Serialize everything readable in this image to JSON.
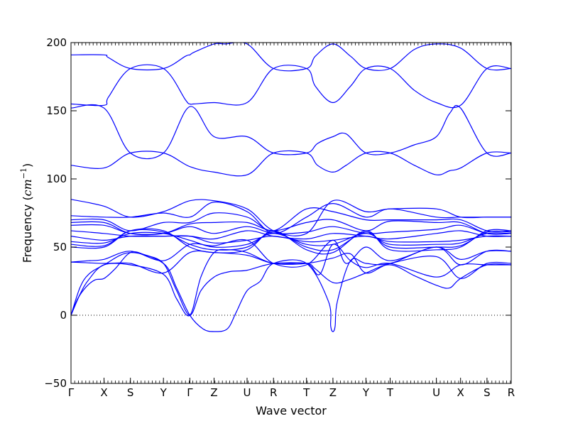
{
  "chart_data": {
    "type": "line",
    "title": "",
    "xlabel": "Wave vector",
    "ylabel": "Frequency (cm⁻¹)",
    "ylabel_prefix": "Frequency (",
    "ylabel_unit": "cm",
    "ylabel_exp": "−1",
    "ylabel_suffix": ")",
    "ylim": [
      -50,
      200
    ],
    "yticks": [
      -50,
      0,
      50,
      100,
      150,
      200
    ],
    "grid": false,
    "line_color": "#0000ff",
    "zero_line_color": "#000000",
    "high_symmetry_points": [
      {
        "label": "Γ",
        "x": 0.0
      },
      {
        "label": "X",
        "x": 0.75
      },
      {
        "label": "S",
        "x": 1.35
      },
      {
        "label": "Y",
        "x": 2.1
      },
      {
        "label": "Γ",
        "x": 2.7
      },
      {
        "label": "Z",
        "x": 3.25
      },
      {
        "label": "U",
        "x": 4.0
      },
      {
        "label": "R",
        "x": 4.6
      },
      {
        "label": "T",
        "x": 5.35
      },
      {
        "label": "Z",
        "x": 5.95
      },
      {
        "label": "Y",
        "x": 6.7
      },
      {
        "label": "T",
        "x": 7.25
      },
      {
        "label": "U",
        "x": 8.3
      },
      {
        "label": "X",
        "x": 8.85
      },
      {
        "label": "S",
        "x": 9.45
      },
      {
        "label": "R",
        "x": 10.0
      }
    ],
    "series": [
      {
        "x": [
          0,
          0.75,
          0.85,
          1.35,
          2.1,
          2.6,
          2.7,
          2.8,
          3.25,
          3.5,
          4.0,
          4.6,
          5.35,
          5.55,
          5.95,
          6.35,
          6.7,
          7.25,
          7.8,
          8.3,
          8.85,
          9.45,
          10.0
        ],
        "y": [
          191,
          191,
          189,
          181,
          181,
          190,
          191,
          193,
          199,
          199,
          199,
          181,
          181,
          190,
          199,
          190,
          181,
          181,
          195,
          199,
          196,
          181,
          181
        ]
      },
      {
        "x": [
          0,
          0.75,
          0.85,
          1.35,
          2.1,
          2.6,
          2.7,
          2.8,
          3.25,
          4.0,
          4.6,
          5.35,
          5.55,
          5.95,
          6.35,
          6.7,
          7.25,
          7.8,
          8.3,
          8.85,
          9.45,
          10.0
        ],
        "y": [
          155,
          154,
          160,
          181,
          181,
          158,
          155,
          155,
          156,
          156,
          181,
          181,
          168,
          156,
          168,
          181,
          181,
          165,
          156,
          154,
          181,
          181
        ]
      },
      {
        "x": [
          0,
          0.75,
          1.35,
          2.1,
          2.7,
          3.25,
          4.0,
          4.6,
          5.35,
          5.6,
          5.95,
          6.25,
          6.7,
          7.25,
          7.8,
          8.3,
          8.6,
          8.85,
          9.45,
          10.0
        ],
        "y": [
          152,
          152,
          119,
          119,
          153,
          131,
          131,
          119,
          119,
          126,
          131,
          133,
          119,
          119,
          125,
          131,
          148,
          152,
          119,
          119
        ]
      },
      {
        "x": [
          0,
          0.75,
          1.35,
          2.1,
          2.7,
          3.25,
          4.0,
          4.6,
          5.35,
          5.6,
          5.95,
          6.25,
          6.7,
          7.25,
          7.8,
          8.3,
          8.6,
          8.85,
          9.45,
          10.0
        ],
        "y": [
          110,
          108,
          119,
          119,
          109,
          105,
          103,
          119,
          119,
          110,
          105,
          110,
          119,
          119,
          110,
          103,
          106,
          108,
          119,
          119
        ]
      },
      {
        "x": [
          0,
          0.75,
          1.35,
          2.1,
          2.7,
          3.25,
          4.0,
          4.6,
          5.35,
          5.95,
          6.7,
          7.25,
          8.3,
          8.85,
          9.45,
          10.0
        ],
        "y": [
          85,
          80,
          72,
          76,
          84,
          84,
          78,
          62,
          60,
          84,
          76,
          78,
          78,
          72,
          72,
          72
        ]
      },
      {
        "x": [
          0,
          0.75,
          1.35,
          2.1,
          2.7,
          3.25,
          4.0,
          4.6,
          5.35,
          5.95,
          6.7,
          7.25,
          8.3,
          8.85,
          9.45,
          10.0
        ],
        "y": [
          73,
          72,
          72,
          75,
          72,
          83,
          76,
          60,
          72,
          82,
          72,
          78,
          72,
          72,
          72,
          72
        ]
      },
      {
        "x": [
          0,
          0.75,
          1.35,
          2.1,
          2.7,
          3.25,
          4.0,
          4.6,
          5.35,
          5.95,
          6.7,
          7.25,
          8.3,
          8.85,
          9.45,
          10.0
        ],
        "y": [
          70,
          70,
          62,
          68,
          68,
          75,
          72,
          62,
          78,
          76,
          70,
          70,
          70,
          70,
          62,
          62
        ]
      },
      {
        "x": [
          0,
          0.75,
          1.35,
          2.1,
          2.7,
          3.25,
          4.0,
          4.6,
          5.35,
          5.95,
          6.7,
          7.25,
          8.3,
          8.85,
          9.45,
          10.0
        ],
        "y": [
          68,
          68,
          60,
          60,
          67,
          68,
          68,
          62,
          68,
          70,
          62,
          69,
          68,
          68,
          60,
          60
        ]
      },
      {
        "x": [
          0,
          0.75,
          1.35,
          2.1,
          2.7,
          3.25,
          4.0,
          4.6,
          5.35,
          5.95,
          6.7,
          7.25,
          8.3,
          8.85,
          9.45,
          10.0
        ],
        "y": [
          66,
          66,
          60,
          60,
          65,
          60,
          65,
          60,
          61,
          65,
          60,
          61,
          63,
          66,
          60,
          60
        ]
      },
      {
        "x": [
          0,
          0.75,
          1.35,
          2.1,
          2.7,
          3.25,
          4.0,
          4.6,
          5.35,
          5.95,
          6.7,
          7.25,
          8.3,
          8.85,
          9.45,
          10.0
        ],
        "y": [
          62,
          60,
          58,
          58,
          58,
          56,
          62,
          58,
          56,
          60,
          58,
          56,
          60,
          62,
          58,
          58
        ]
      },
      {
        "x": [
          0,
          0.75,
          1.35,
          2.1,
          2.7,
          3.25,
          4.0,
          4.6,
          5.35,
          5.95,
          6.7,
          7.25,
          8.3,
          8.85,
          9.45,
          10.0
        ],
        "y": [
          58,
          55,
          58,
          58,
          58,
          53,
          55,
          58,
          54,
          55,
          58,
          54,
          54,
          55,
          58,
          58
        ]
      },
      {
        "x": [
          0,
          0.75,
          1.35,
          2.1,
          2.7,
          3.25,
          4.0,
          4.6,
          5.35,
          5.95,
          6.7,
          7.25,
          8.3,
          8.85,
          9.45,
          10.0
        ],
        "y": [
          54,
          53,
          60,
          60,
          55,
          50,
          52,
          60,
          52,
          52,
          60,
          52,
          52,
          53,
          60,
          60
        ]
      },
      {
        "x": [
          0,
          0.75,
          1.35,
          2.1,
          2.7,
          3.25,
          4.0,
          4.6,
          5.35,
          5.95,
          6.7,
          7.25,
          8.3,
          8.85,
          9.45,
          10.0
        ],
        "y": [
          52,
          51,
          62,
          61,
          52,
          48,
          50,
          61,
          50,
          48,
          61,
          50,
          50,
          51,
          61,
          61
        ]
      },
      {
        "x": [
          0,
          0.75,
          1.35,
          2.1,
          2.7,
          3.25,
          4.0,
          4.6,
          5.35,
          5.95,
          6.7,
          7.25,
          8.3,
          8.85,
          9.45,
          10.0
        ],
        "y": [
          50,
          50,
          62,
          62,
          50,
          46,
          48,
          62,
          48,
          46,
          62,
          48,
          48,
          50,
          62,
          62
        ]
      },
      {
        "x": [
          0,
          0.4,
          0.75,
          1.35,
          2.1,
          2.7,
          3.25,
          4.0,
          4.6,
          5.35,
          5.95,
          6.25,
          6.7,
          7.25,
          8.3,
          8.85,
          9.45,
          10.0
        ],
        "y": [
          39,
          40,
          41,
          47,
          40,
          52,
          51,
          55,
          38,
          37,
          55,
          38,
          50,
          40,
          50,
          41,
          47,
          47
        ]
      },
      {
        "x": [
          0,
          0.75,
          1.35,
          2.1,
          2.7,
          3.25,
          4.0,
          4.6,
          5.35,
          5.95,
          6.35,
          6.7,
          7.25,
          8.3,
          8.85,
          9.45,
          10.0
        ],
        "y": [
          39,
          38,
          38,
          31,
          46,
          46,
          44,
          38,
          38,
          42,
          45,
          31,
          38,
          43,
          27,
          38,
          38
        ]
      },
      {
        "x": [
          0,
          0.15,
          0.35,
          0.55,
          0.75,
          1.0,
          1.35,
          1.7,
          2.1,
          2.4,
          2.7,
          2.95,
          3.25,
          3.6,
          4.0,
          4.6,
          5.35,
          5.55,
          5.95,
          6.3,
          6.7,
          7.25,
          7.8,
          8.3,
          8.6,
          8.85,
          9.45,
          10.0
        ],
        "y": [
          0,
          12,
          21,
          26,
          27,
          34,
          46,
          44,
          38,
          18,
          0,
          18,
          28,
          32,
          33,
          38,
          38,
          34,
          24,
          26,
          31,
          37,
          29,
          22,
          20,
          27,
          37,
          37
        ]
      },
      {
        "x": [
          0,
          0.2,
          0.4,
          0.75,
          1.35,
          2.1,
          2.4,
          2.7,
          2.95,
          3.25,
          3.6,
          4.0,
          4.6,
          5.35,
          5.65,
          5.95,
          6.35,
          6.7,
          7.25,
          8.3,
          8.85,
          9.45,
          10.0
        ],
        "y": [
          0,
          15,
          26,
          37,
          37,
          30,
          12,
          0,
          28,
          46,
          48,
          46,
          38,
          38,
          30,
          52,
          40,
          35,
          38,
          28,
          37,
          37,
          37
        ]
      },
      {
        "x": [
          0,
          0.2,
          0.4,
          0.75,
          1.35,
          2.1,
          2.4,
          2.7,
          3.0,
          3.25,
          3.55,
          3.75,
          4.0,
          4.3,
          4.6,
          5.35,
          5.85,
          5.9,
          5.95,
          6.0,
          6.05,
          6.35,
          6.7,
          7.25,
          8.3,
          8.85,
          9.45,
          10.0
        ],
        "y": [
          0,
          20,
          30,
          37,
          46,
          38,
          20,
          0,
          -10,
          -12,
          -10,
          2,
          18,
          25,
          38,
          38,
          10,
          -8,
          -12,
          -8,
          10,
          40,
          38,
          38,
          50,
          37,
          47,
          47
        ]
      }
    ]
  }
}
